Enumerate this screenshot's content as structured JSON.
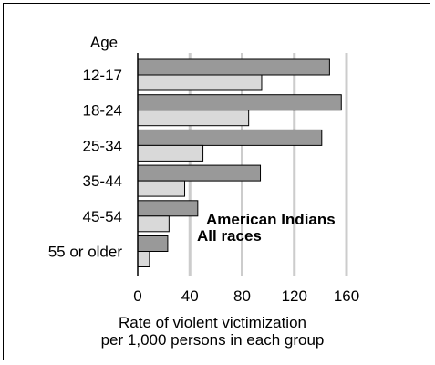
{
  "chart_data": {
    "type": "bar",
    "orientation": "horizontal",
    "y_axis_title": "Age",
    "categories": [
      "12-17",
      "18-24",
      "25-34",
      "35-44",
      "45-54",
      "55 or older"
    ],
    "series": [
      {
        "name": "American Indians",
        "color": "#999999",
        "values": [
          147,
          156,
          141,
          94,
          46,
          23
        ]
      },
      {
        "name": "All races",
        "color": "#d9d9d9",
        "values": [
          95,
          85,
          50,
          36,
          24,
          9
        ]
      }
    ],
    "x_ticks": [
      "0",
      "40",
      "80",
      "120",
      "160"
    ],
    "xlim": [
      0,
      160
    ],
    "xlabel_line1": "Rate of violent victimization",
    "xlabel_line2": "per 1,000 persons in each group",
    "grid": "vertical",
    "legend_position": "lower-right inside plot"
  }
}
